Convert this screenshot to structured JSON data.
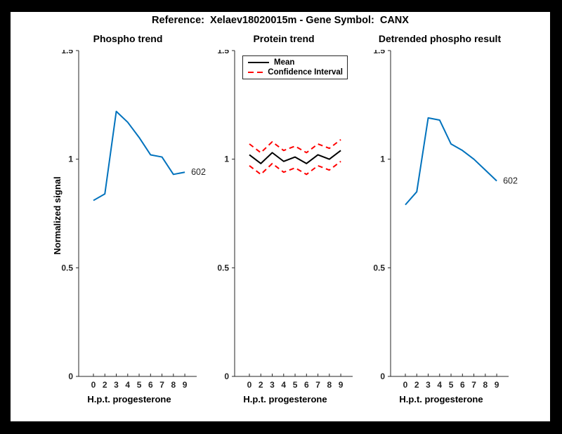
{
  "figure": {
    "title": "Reference:  Xelaev18020015m - Gene Symbol:  CANX",
    "border_color": "#000000",
    "background": "#ffffff"
  },
  "colors": {
    "accent_blue": "#0072BD",
    "mean_line": "#000000",
    "confidence_interval": "#ff0000",
    "axis": "#262626",
    "text": "#000000"
  },
  "axes": {
    "ylabel": "Normalized signal",
    "xlabel": "H.p.t. progesterone",
    "x_tick_labels": [
      "0",
      "2",
      "3",
      "4",
      "5",
      "6",
      "7",
      "8",
      "9"
    ],
    "y_tick_labels": [
      "0",
      "0.5",
      "1",
      "1.5"
    ],
    "y_tick_values": [
      0,
      0.5,
      1,
      1.5
    ],
    "ylim": [
      0,
      1.5
    ],
    "grid": false
  },
  "legend": {
    "position": "top-left-of-protein-trend",
    "items": [
      {
        "label": "Mean",
        "color": "#000000",
        "style": "solid"
      },
      {
        "label": "Confidence Interval",
        "color": "#ff0000",
        "style": "dashed"
      }
    ]
  },
  "chart_data": [
    {
      "type": "line",
      "title": "Phospho trend",
      "xlabel": "H.p.t. progesterone",
      "ylabel": "Normalized signal",
      "ylim": [
        0,
        1.5
      ],
      "categories": [
        "0",
        "2",
        "3",
        "4",
        "5",
        "6",
        "7",
        "8",
        "9"
      ],
      "series": [
        {
          "name": "phospho-602",
          "color": "#0072BD",
          "style": "solid",
          "values": [
            0.81,
            0.84,
            1.22,
            1.17,
            1.1,
            1.02,
            1.01,
            0.93,
            0.94
          ],
          "end_label": "602"
        }
      ]
    },
    {
      "type": "line",
      "title": "Protein trend",
      "xlabel": "H.p.t. progesterone",
      "ylabel": "Normalized signal",
      "ylim": [
        0,
        1.5
      ],
      "categories": [
        "0",
        "2",
        "3",
        "4",
        "5",
        "6",
        "7",
        "8",
        "9"
      ],
      "series": [
        {
          "name": "mean",
          "legend_label": "Mean",
          "color": "#000000",
          "style": "solid",
          "values": [
            1.02,
            0.98,
            1.03,
            0.99,
            1.01,
            0.98,
            1.02,
            1.0,
            1.04
          ]
        },
        {
          "name": "confidence-interval-upper",
          "legend_label": "Confidence Interval",
          "color": "#ff0000",
          "style": "dashed",
          "values": [
            1.07,
            1.03,
            1.08,
            1.04,
            1.06,
            1.03,
            1.07,
            1.05,
            1.09
          ]
        },
        {
          "name": "confidence-interval-lower",
          "legend_label": "Confidence Interval",
          "color": "#ff0000",
          "style": "dashed",
          "values": [
            0.97,
            0.93,
            0.98,
            0.94,
            0.96,
            0.93,
            0.97,
            0.95,
            0.99
          ]
        }
      ]
    },
    {
      "type": "line",
      "title": "Detrended phospho result",
      "xlabel": "H.p.t. progesterone",
      "ylabel": "Normalized signal",
      "ylim": [
        0,
        1.5
      ],
      "categories": [
        "0",
        "2",
        "3",
        "4",
        "5",
        "6",
        "7",
        "8",
        "9"
      ],
      "series": [
        {
          "name": "detrended-602",
          "color": "#0072BD",
          "style": "solid",
          "values": [
            0.79,
            0.85,
            1.19,
            1.18,
            1.07,
            1.04,
            1.0,
            0.95,
            0.9
          ],
          "end_label": "602"
        }
      ]
    }
  ]
}
